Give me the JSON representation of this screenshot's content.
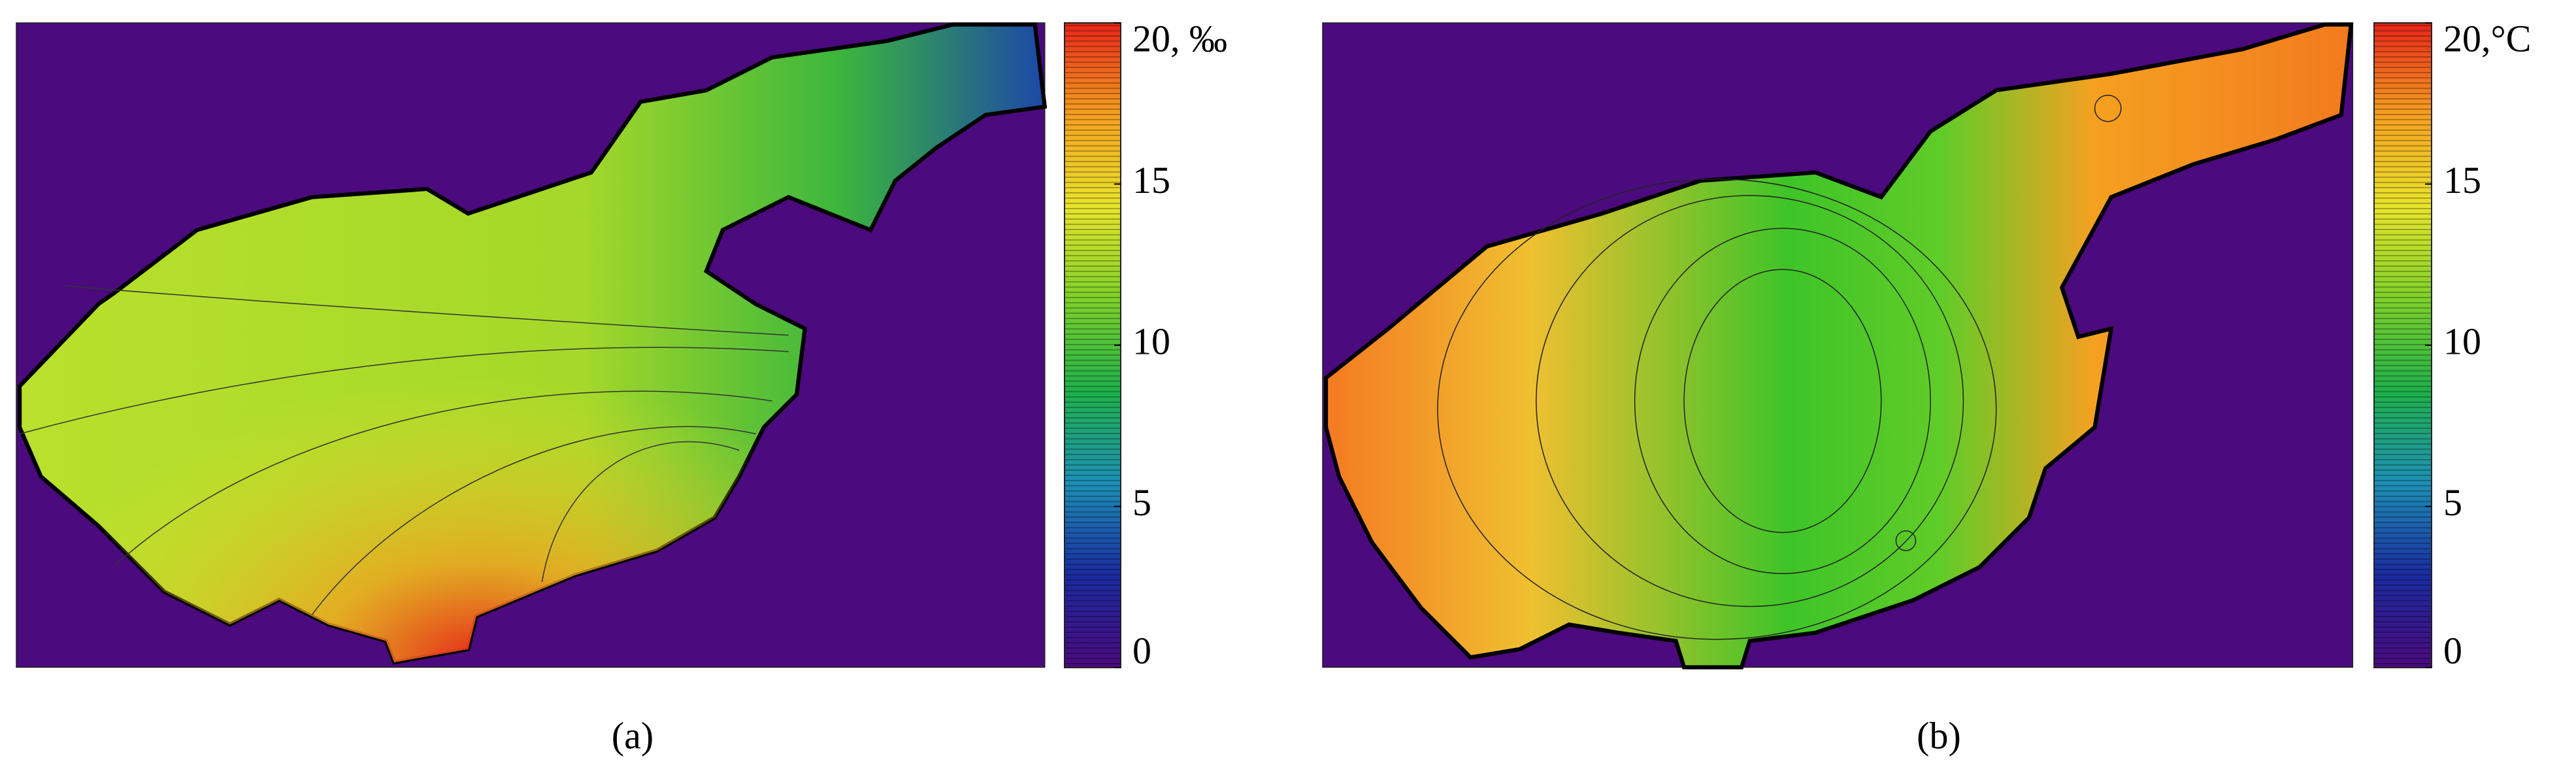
{
  "chart_data": [
    {
      "type": "contour",
      "caption": "(a)",
      "colorbar": {
        "lim": [
          0,
          20
        ],
        "ticks": [
          0,
          5,
          10,
          15,
          {
            "value": 20,
            "label": "20, ‰"
          }
        ],
        "colors": [
          "#4b0a7d",
          "#1a2aa0",
          "#1d8fb5",
          "#1fb04a",
          "#7dd02a",
          "#e8e42c",
          "#f5a020",
          "#e6241a"
        ]
      }
    },
    {
      "type": "contour",
      "caption": "(b)",
      "colorbar": {
        "lim": [
          0,
          20
        ],
        "ticks": [
          0,
          5,
          10,
          15,
          {
            "value": 20,
            "label": "20,°C"
          }
        ],
        "colors": [
          "#4b0a7d",
          "#1a2aa0",
          "#1d8fb5",
          "#1fb04a",
          "#7dd02a",
          "#e8e42c",
          "#f5a020",
          "#e6241a"
        ]
      }
    }
  ]
}
